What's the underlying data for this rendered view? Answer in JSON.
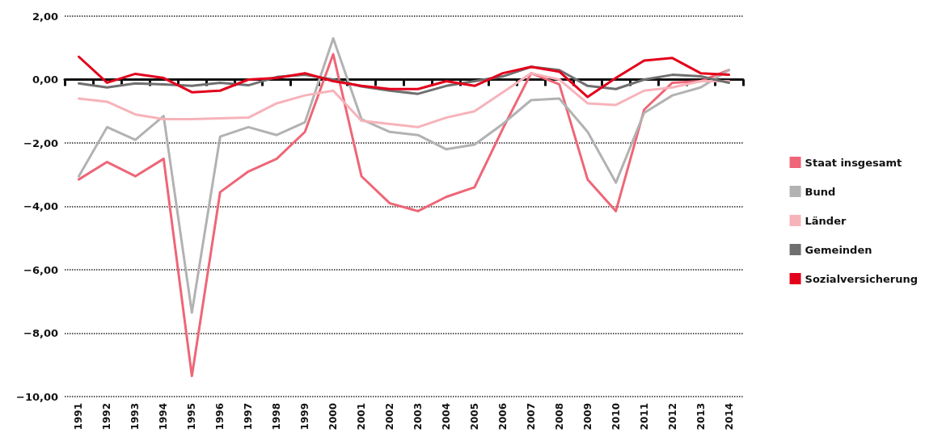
{
  "chart_data": {
    "type": "line",
    "categories": [
      "1991",
      "1992",
      "1993",
      "1994",
      "1995",
      "1996",
      "1997",
      "1998",
      "1999",
      "2000",
      "2001",
      "2002",
      "2003",
      "2004",
      "2005",
      "2006",
      "2007",
      "2008",
      "2009",
      "2010",
      "2011",
      "2012",
      "2013",
      "2014"
    ],
    "series": [
      {
        "name": "Staat insgesamt",
        "color": "#ee6677",
        "values": [
          -3.15,
          -2.6,
          -3.05,
          -2.5,
          -9.35,
          -3.55,
          -2.9,
          -2.5,
          -1.65,
          0.8,
          -3.05,
          -3.9,
          -4.15,
          -3.7,
          -3.4,
          -1.55,
          0.2,
          -0.15,
          -3.15,
          -4.15,
          -0.95,
          -0.1,
          -0.05,
          0.3
        ]
      },
      {
        "name": "Bund",
        "color": "#b2b2b2",
        "values": [
          -3.05,
          -1.5,
          -1.9,
          -1.15,
          -7.35,
          -1.8,
          -1.5,
          -1.75,
          -1.35,
          1.3,
          -1.25,
          -1.65,
          -1.75,
          -2.2,
          -2.05,
          -1.4,
          -0.65,
          -0.6,
          -1.65,
          -3.25,
          -1.05,
          -0.5,
          -0.25,
          0.3
        ]
      },
      {
        "name": "Länder",
        "color": "#f7b3ba",
        "values": [
          -0.6,
          -0.7,
          -1.1,
          -1.25,
          -1.25,
          -1.22,
          -1.2,
          -0.75,
          -0.5,
          -0.35,
          -1.3,
          -1.4,
          -1.5,
          -1.2,
          -1.0,
          -0.4,
          0.2,
          0.0,
          -0.75,
          -0.8,
          -0.35,
          -0.25,
          -0.05,
          -0.05
        ]
      },
      {
        "name": "Gemeinden",
        "color": "#6f6f6f",
        "values": [
          -0.12,
          -0.25,
          -0.12,
          -0.15,
          -0.2,
          -0.1,
          -0.18,
          0.08,
          0.15,
          0.0,
          -0.22,
          -0.35,
          -0.45,
          -0.2,
          -0.05,
          0.1,
          0.4,
          0.3,
          -0.2,
          -0.3,
          0.0,
          0.15,
          0.1,
          -0.1
        ]
      },
      {
        "name": "Sozialversicherung",
        "color": "#e3001b",
        "values": [
          0.72,
          -0.1,
          0.18,
          0.05,
          -0.4,
          -0.35,
          0.0,
          0.05,
          0.2,
          -0.05,
          -0.2,
          -0.3,
          -0.3,
          -0.05,
          -0.2,
          0.2,
          0.4,
          0.25,
          -0.55,
          0.05,
          0.6,
          0.68,
          0.2,
          0.15
        ]
      }
    ],
    "ylim": [
      -10,
      2
    ],
    "yticks": [
      {
        "value": -10,
        "label": "−10,00"
      },
      {
        "value": -8,
        "label": "−8,00"
      },
      {
        "value": -6,
        "label": "−6,00"
      },
      {
        "value": -4,
        "label": "−4,00"
      },
      {
        "value": -2,
        "label": "−2,00"
      },
      {
        "value": 0,
        "label": "0,00"
      },
      {
        "value": 2,
        "label": "2,00"
      }
    ],
    "grid": "y",
    "legend": "right",
    "marker": "none",
    "line_style": "solid"
  }
}
